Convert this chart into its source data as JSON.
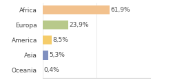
{
  "categories": [
    "Africa",
    "Europa",
    "America",
    "Asia",
    "Oceania"
  ],
  "values": [
    61.9,
    23.9,
    8.5,
    5.3,
    0.4
  ],
  "labels": [
    "61,9%",
    "23,9%",
    "8,5%",
    "5,3%",
    "0,4%"
  ],
  "bar_colors": [
    "#f2c18d",
    "#b8c98a",
    "#f5cc6a",
    "#8090c0",
    "#f5a0a0"
  ],
  "background_color": "#ffffff",
  "xlim": [
    0,
    100
  ],
  "bar_height": 0.6,
  "label_fontsize": 6.5,
  "tick_fontsize": 6.5,
  "grid_color": "#e0e0e0",
  "spine_color": "#cccccc",
  "text_color": "#444444"
}
